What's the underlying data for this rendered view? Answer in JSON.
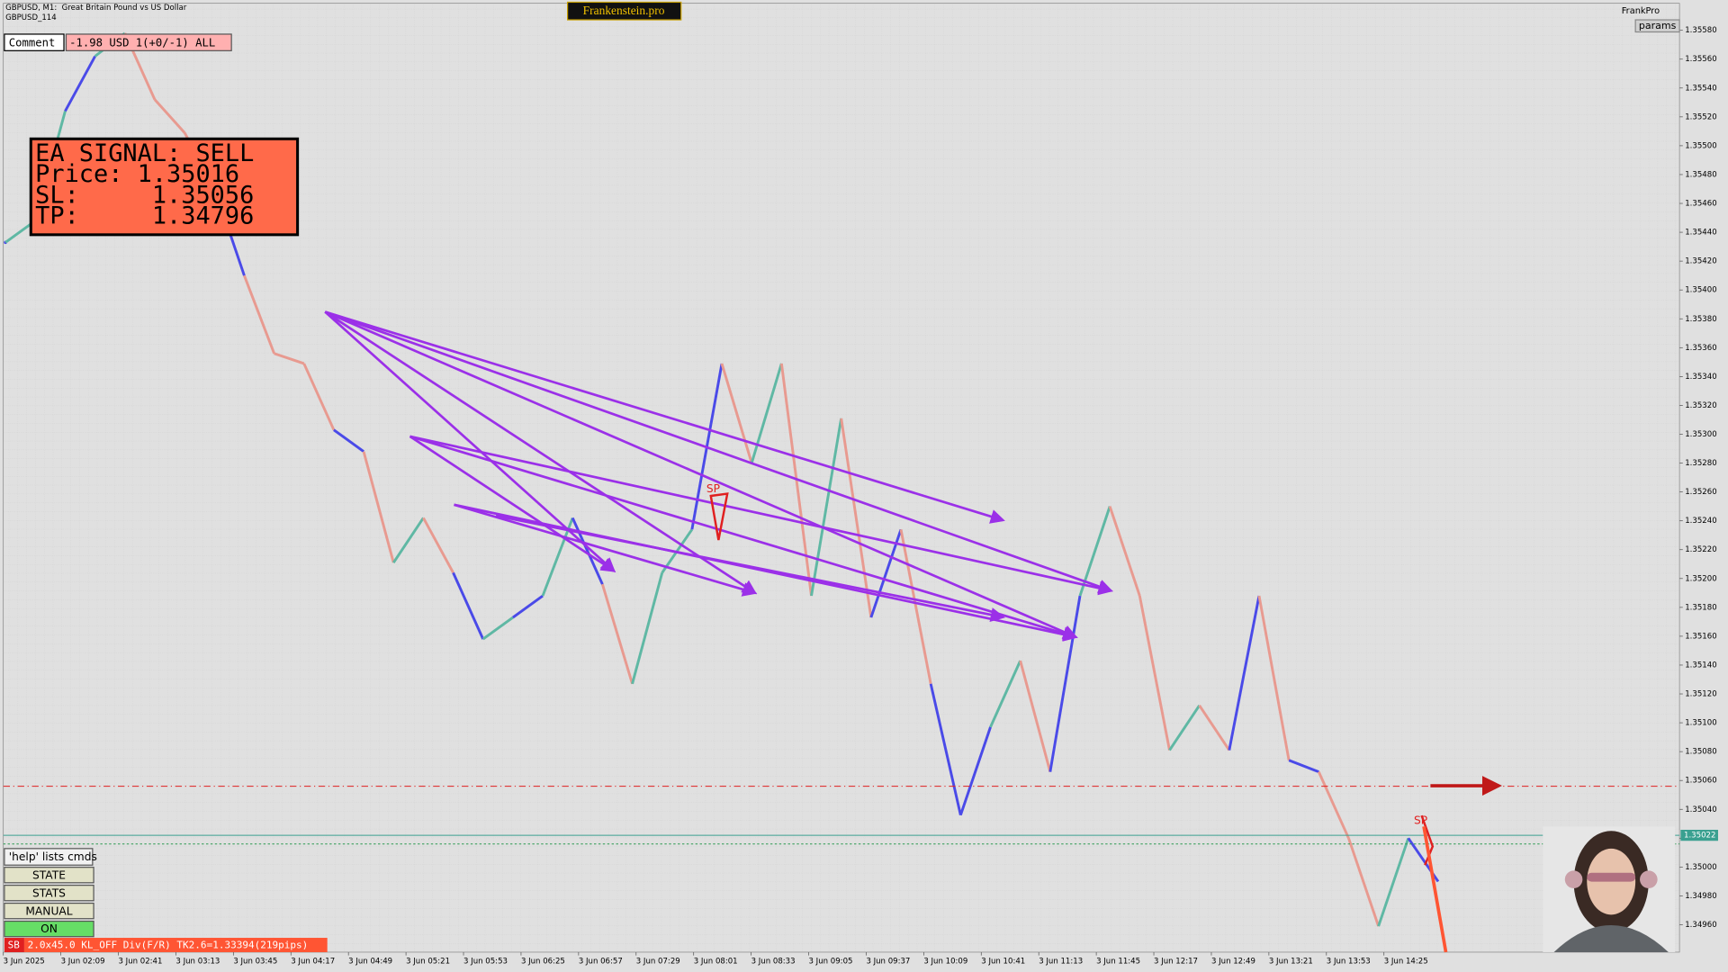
{
  "header": {
    "symbol": "GBPUSD, M1:  Great Britain Pound vs US Dollar",
    "subtitle": "GBPUSD_114",
    "brand": "Frankenstein.pro",
    "account": "FrankPro",
    "params": "params"
  },
  "comment": {
    "label": "Comment",
    "value": "-1.98 USD 1(+0/-1) ALL"
  },
  "signal": {
    "lines": [
      "EA SIGNAL: SELL",
      "Price: 1.35016",
      "SL:     1.35056",
      "TP:     1.34796"
    ]
  },
  "markers": [
    "SP",
    "SP"
  ],
  "buttons": {
    "help": "'help' lists cmds",
    "items": [
      "STATE",
      "STATS",
      "MANUAL",
      "ON"
    ]
  },
  "status": {
    "tag": "SB",
    "text": "2.0x45.0 KL_OFF Div(F/R) TK2.6=1.33394(219pips)"
  },
  "chart": {
    "ylim": [
      1.34941,
      1.35601
    ],
    "yticks": [
      {
        "value": 1.3496,
        "label": "1.34960"
      },
      {
        "value": 1.3498,
        "label": "1.34980"
      },
      {
        "value": 1.35,
        "label": "1.35000"
      },
      {
        "value": 1.3502,
        "label": "1.35020"
      },
      {
        "value": 1.3504,
        "label": "1.35040"
      },
      {
        "value": 1.3506,
        "label": "1.35060"
      },
      {
        "value": 1.3508,
        "label": "1.35080"
      },
      {
        "value": 1.351,
        "label": "1.35100"
      },
      {
        "value": 1.3512,
        "label": "1.35120"
      },
      {
        "value": 1.3514,
        "label": "1.35140"
      },
      {
        "value": 1.3516,
        "label": "1.35160"
      },
      {
        "value": 1.3518,
        "label": "1.35180"
      },
      {
        "value": 1.352,
        "label": "1.35200"
      },
      {
        "value": 1.3522,
        "label": "1.35220"
      },
      {
        "value": 1.3524,
        "label": "1.35240"
      },
      {
        "value": 1.3526,
        "label": "1.35260"
      },
      {
        "value": 1.3528,
        "label": "1.35280"
      },
      {
        "value": 1.353,
        "label": "1.35300"
      },
      {
        "value": 1.3532,
        "label": "1.35320"
      },
      {
        "value": 1.3534,
        "label": "1.35340"
      },
      {
        "value": 1.3536,
        "label": "1.35360"
      },
      {
        "value": 1.3538,
        "label": "1.35380"
      },
      {
        "value": 1.354,
        "label": "1.35400"
      },
      {
        "value": 1.3542,
        "label": "1.35420"
      },
      {
        "value": 1.3544,
        "label": "1.35440"
      },
      {
        "value": 1.3546,
        "label": "1.35460"
      },
      {
        "value": 1.3548,
        "label": "1.35480"
      },
      {
        "value": 1.355,
        "label": "1.35500"
      },
      {
        "value": 1.3552,
        "label": "1.35520"
      },
      {
        "value": 1.3554,
        "label": "1.35540"
      },
      {
        "value": 1.3556,
        "label": "1.35560"
      },
      {
        "value": 1.3558,
        "label": "1.35580"
      }
    ],
    "bid": {
      "value": 1.35022,
      "label": "1.35022"
    },
    "levels": [
      1.35056,
      1.35016
    ],
    "time_labels": [
      "3 Jun 2025",
      "3 Jun 02:09",
      "3 Jun 02:41",
      "3 Jun 03:13",
      "3 Jun 03:45",
      "3 Jun 04:17",
      "3 Jun 04:49",
      "3 Jun 05:21",
      "3 Jun 05:53",
      "3 Jun 06:25",
      "3 Jun 06:57",
      "3 Jun 07:29",
      "3 Jun 08:01",
      "3 Jun 08:33",
      "3 Jun 09:05",
      "3 Jun 09:37",
      "3 Jun 10:09",
      "3 Jun 10:41",
      "3 Jun 11:13",
      "3 Jun 11:45",
      "3 Jun 12:17",
      "3 Jun 12:49",
      "3 Jun 13:21",
      "3 Jun 13:53",
      "3 Jun 14:25"
    ],
    "prices": [
      1.35433,
      1.35448,
      1.35524,
      1.35562,
      1.35578,
      1.35532,
      1.35509,
      1.35471,
      1.3541,
      1.35356,
      1.35349,
      1.35303,
      1.35288,
      1.35211,
      1.35242,
      1.35204,
      1.35158,
      1.35173,
      1.35188,
      1.35242,
      1.35196,
      1.35127,
      1.35204,
      1.35234,
      1.35349,
      1.3528,
      1.35349,
      1.35188,
      1.35311,
      1.35173,
      1.35234,
      1.35127,
      1.35036,
      1.35097,
      1.35143,
      1.35066,
      1.35188,
      1.3525,
      1.35188,
      1.35081,
      1.35112,
      1.35081,
      1.35188,
      1.35074,
      1.35066,
      1.3502,
      1.34959,
      1.3502,
      1.3499
    ]
  }
}
